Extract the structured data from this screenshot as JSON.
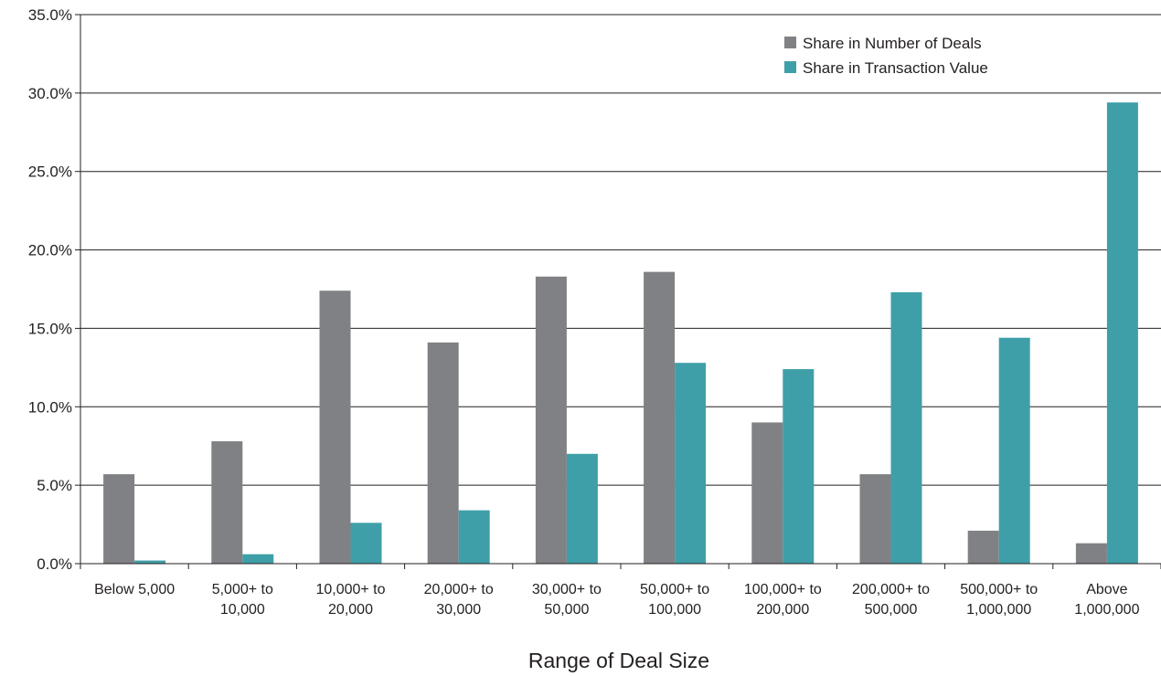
{
  "chart_data": {
    "type": "bar",
    "title": "",
    "xlabel": "Range of Deal Size",
    "ylabel": "",
    "ylim": [
      0,
      35
    ],
    "yticks": [
      "0.0%",
      "5.0%",
      "10.0%",
      "15.0%",
      "20.0%",
      "25.0%",
      "30.0%",
      "35.0%"
    ],
    "grid": true,
    "legend_position": "top-right",
    "categories": [
      [
        "Below 5,000"
      ],
      [
        "5,000+ to",
        "10,000"
      ],
      [
        "10,000+ to",
        "20,000"
      ],
      [
        "20,000+ to",
        "30,000"
      ],
      [
        "30,000+ to",
        "50,000"
      ],
      [
        "50,000+ to",
        "100,000"
      ],
      [
        "100,000+ to",
        "200,000"
      ],
      [
        "200,000+ to",
        "500,000"
      ],
      [
        "500,000+ to",
        "1,000,000"
      ],
      [
        "Above",
        "1,000,000"
      ]
    ],
    "series": [
      {
        "name": "Share in Number of Deals",
        "color": "#808184",
        "values": [
          5.7,
          7.8,
          17.4,
          14.1,
          18.3,
          18.6,
          9.0,
          5.7,
          2.1,
          1.3
        ]
      },
      {
        "name": "Share in Transaction Value",
        "color": "#3f9fa8",
        "values": [
          0.2,
          0.6,
          2.6,
          3.4,
          7.0,
          12.8,
          12.4,
          17.3,
          14.4,
          29.4
        ]
      }
    ]
  }
}
